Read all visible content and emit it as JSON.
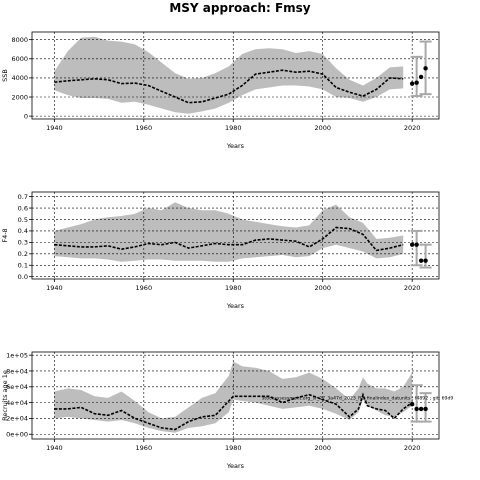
{
  "title": "MSY approach: Fmsy",
  "chart_data": [
    {
      "type": "area",
      "xlabel": "Years",
      "ylabel": "SSB",
      "xlim": [
        1935,
        2026
      ],
      "ylim": [
        -300,
        8800
      ],
      "xticks": [
        1940,
        1960,
        1980,
        2000,
        2020
      ],
      "yticks": [
        0,
        2000,
        4000,
        6000,
        8000
      ],
      "ytick_labels": [
        "0",
        "2000",
        "4000",
        "6000",
        "8000"
      ],
      "grid": true,
      "x": [
        1940,
        1943,
        1946,
        1949,
        1952,
        1955,
        1958,
        1961,
        1964,
        1967,
        1970,
        1973,
        1976,
        1979,
        1982,
        1985,
        1988,
        1991,
        1994,
        1997,
        2000,
        2003,
        2006,
        2009,
        2012,
        2015,
        2018
      ],
      "upper": [
        4700,
        6800,
        8200,
        8300,
        7900,
        7800,
        7500,
        6700,
        5600,
        4500,
        3900,
        4000,
        4500,
        5200,
        6500,
        7000,
        7100,
        7000,
        6600,
        6800,
        6500,
        5000,
        3800,
        3200,
        4000,
        5100,
        5200
      ],
      "lower": [
        2700,
        2200,
        1900,
        1900,
        1800,
        1400,
        1500,
        1200,
        800,
        400,
        250,
        500,
        800,
        1400,
        2200,
        2800,
        3000,
        3200,
        3200,
        3100,
        2800,
        2000,
        1900,
        1500,
        2000,
        2800,
        2900
      ],
      "median": [
        3550,
        3700,
        3800,
        3900,
        3800,
        3400,
        3450,
        3200,
        2600,
        2000,
        1400,
        1500,
        1900,
        2300,
        3200,
        4400,
        4600,
        4800,
        4600,
        4700,
        4400,
        3000,
        2500,
        2100,
        2800,
        4000,
        3900
      ],
      "points": [
        [
          2020,
          3400
        ],
        [
          2021,
          3500
        ],
        [
          2022,
          4100
        ],
        [
          2023,
          5000
        ]
      ],
      "whiskers": [
        {
          "x": 2021,
          "low": 2100,
          "high": 6200
        },
        {
          "x": 2023,
          "low": 2300,
          "high": 7800
        }
      ]
    },
    {
      "type": "area",
      "xlabel": "Years",
      "ylabel": "F4-8",
      "xlim": [
        1935,
        2026
      ],
      "ylim": [
        -0.02,
        0.74
      ],
      "xticks": [
        1940,
        1960,
        1980,
        2000,
        2020
      ],
      "yticks": [
        0.0,
        0.1,
        0.2,
        0.3,
        0.4,
        0.5,
        0.6,
        0.7
      ],
      "ytick_labels": [
        "0.0",
        "0.1",
        "0.2",
        "0.3",
        "0.4",
        "0.5",
        "0.6",
        "0.7"
      ],
      "grid": true,
      "x": [
        1940,
        1943,
        1946,
        1949,
        1952,
        1955,
        1958,
        1961,
        1964,
        1967,
        1970,
        1973,
        1976,
        1979,
        1982,
        1985,
        1988,
        1991,
        1994,
        1997,
        2000,
        2003,
        2006,
        2009,
        2012,
        2015,
        2018
      ],
      "upper": [
        0.4,
        0.43,
        0.46,
        0.5,
        0.52,
        0.53,
        0.55,
        0.6,
        0.58,
        0.65,
        0.6,
        0.58,
        0.58,
        0.55,
        0.5,
        0.48,
        0.46,
        0.44,
        0.43,
        0.45,
        0.58,
        0.63,
        0.52,
        0.47,
        0.33,
        0.34,
        0.36
      ],
      "lower": [
        0.18,
        0.17,
        0.16,
        0.16,
        0.15,
        0.13,
        0.14,
        0.15,
        0.15,
        0.14,
        0.14,
        0.14,
        0.13,
        0.13,
        0.16,
        0.17,
        0.18,
        0.19,
        0.17,
        0.18,
        0.25,
        0.28,
        0.25,
        0.22,
        0.16,
        0.17,
        0.2
      ],
      "median": [
        0.28,
        0.27,
        0.26,
        0.26,
        0.27,
        0.24,
        0.26,
        0.29,
        0.28,
        0.3,
        0.25,
        0.27,
        0.29,
        0.28,
        0.28,
        0.32,
        0.33,
        0.32,
        0.31,
        0.26,
        0.33,
        0.43,
        0.42,
        0.37,
        0.23,
        0.25,
        0.28
      ],
      "points": [
        [
          2020,
          0.28
        ],
        [
          2021,
          0.28
        ],
        [
          2022,
          0.14
        ],
        [
          2023,
          0.14
        ]
      ],
      "whiskers": [
        {
          "x": 2021,
          "low": 0.1,
          "high": 0.4
        },
        {
          "x": 2023,
          "low": 0.08,
          "high": 0.28
        }
      ]
    },
    {
      "type": "area",
      "xlabel": "Years",
      "ylabel": "Recruits age 1e",
      "xlim": [
        1935,
        2026
      ],
      "ylim": [
        -0.3,
        5.2
      ],
      "xticks": [
        1940,
        1960,
        1980,
        2000,
        2020
      ],
      "yticks": [
        0,
        1,
        2,
        3,
        4,
        5
      ],
      "ytick_labels": [
        "0e+00",
        "2e+04",
        "4e+04",
        "6e+04",
        "8e+04",
        "1e+05"
      ],
      "grid": true,
      "x": [
        1940,
        1943,
        1946,
        1949,
        1952,
        1955,
        1958,
        1961,
        1964,
        1967,
        1970,
        1973,
        1976,
        1979,
        1980,
        1982,
        1985,
        1988,
        1991,
        1994,
        1997,
        2000,
        2003,
        2006,
        2008,
        2009,
        2010,
        2012,
        2014,
        2016,
        2018,
        2020
      ],
      "upper": [
        2.7,
        2.9,
        2.8,
        2.4,
        2.3,
        2.7,
        2.1,
        1.4,
        1.0,
        1.1,
        1.7,
        2.3,
        2.6,
        3.7,
        4.6,
        4.3,
        4.2,
        4.0,
        3.5,
        3.6,
        3.9,
        3.5,
        2.9,
        2.2,
        2.9,
        3.6,
        3.2,
        2.9,
        2.9,
        2.7,
        3.0,
        3.9
      ],
      "lower": [
        1.0,
        1.1,
        1.0,
        0.9,
        0.8,
        0.9,
        0.7,
        0.4,
        0.2,
        0.1,
        0.4,
        0.5,
        0.7,
        1.4,
        2.2,
        2.1,
        2.0,
        1.8,
        1.6,
        1.7,
        1.8,
        1.6,
        1.3,
        0.9,
        1.4,
        2.2,
        1.8,
        1.5,
        1.2,
        1.1,
        1.4,
        1.8
      ],
      "median": [
        1.6,
        1.6,
        1.7,
        1.3,
        1.2,
        1.5,
        1.0,
        0.7,
        0.4,
        0.3,
        0.8,
        1.1,
        1.2,
        2.1,
        2.4,
        2.4,
        2.4,
        2.4,
        2.0,
        2.3,
        2.5,
        2.2,
        1.9,
        1.1,
        1.6,
        2.5,
        1.8,
        1.6,
        1.5,
        1.0,
        1.6,
        2.0
      ],
      "points": [
        [
          2020,
          1.9
        ],
        [
          2021,
          1.6
        ],
        [
          2022,
          1.6
        ],
        [
          2023,
          1.6
        ]
      ],
      "whiskers": [
        {
          "x": 2021,
          "low": 0.8,
          "high": 3.1
        },
        {
          "x": 2023,
          "low": 0.8,
          "high": 2.6
        }
      ],
      "annotation": "stockassessment.org_sr_27_3a47d_2023_RB_finalindex_datunits ; f4892 ; git: 69d9"
    }
  ]
}
